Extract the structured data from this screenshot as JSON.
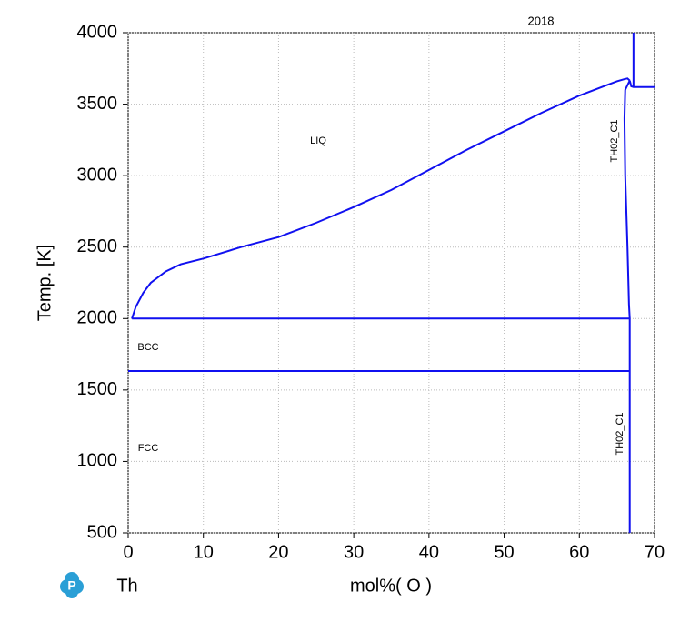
{
  "chart_data": {
    "type": "line",
    "title": "2018",
    "ylabel": "Temp.  [K]",
    "xlabel": "mol%(  O  )",
    "component": "Th",
    "annotations": [
      "LIQ",
      "BCC",
      "FCC",
      "TH02_C1",
      "TH02_C1"
    ],
    "xlim": [
      0,
      70
    ],
    "ylim": [
      500,
      4000
    ],
    "xticks": [
      0,
      10,
      20,
      30,
      40,
      50,
      60,
      70
    ],
    "yticks": [
      500,
      1000,
      1500,
      2000,
      2500,
      3000,
      3500,
      4000
    ],
    "grid": true,
    "series": [
      {
        "color": "#1010f0",
        "x": [
          0.5,
          1,
          2,
          3,
          5,
          7,
          10,
          15,
          20,
          25,
          30,
          35,
          40,
          45,
          50,
          55,
          60,
          63,
          65,
          66,
          66.4,
          66.7
        ],
        "values": [
          2000,
          2080,
          2180,
          2250,
          2330,
          2380,
          2420,
          2500,
          2570,
          2670,
          2780,
          2900,
          3040,
          3180,
          3310,
          3440,
          3560,
          3620,
          3660,
          3675,
          3680,
          3665
        ]
      },
      {
        "color": "#1010f0",
        "x": [
          66.7,
          66.1,
          66.0,
          66.1,
          66.4,
          66.6,
          66.7
        ],
        "values": [
          3665,
          3600,
          3400,
          3000,
          2500,
          2100,
          2000
        ]
      },
      {
        "color": "#1010f0",
        "x": [
          66.7,
          66.9,
          67.2,
          70
        ],
        "values": [
          3665,
          3625,
          3620,
          3620
        ]
      },
      {
        "color": "#1010f0",
        "x": [
          67.2,
          67.2
        ],
        "values": [
          3620,
          4000
        ]
      },
      {
        "color": "#1010f0",
        "x": [
          66.7,
          66.7
        ],
        "values": [
          2000,
          500
        ]
      },
      {
        "color": "#1010f0",
        "x": [
          0.5,
          66.7
        ],
        "values": [
          2000,
          2000
        ]
      },
      {
        "color": "#1010f0",
        "x": [
          0,
          66.7
        ],
        "values": [
          1633,
          1633
        ]
      }
    ]
  }
}
